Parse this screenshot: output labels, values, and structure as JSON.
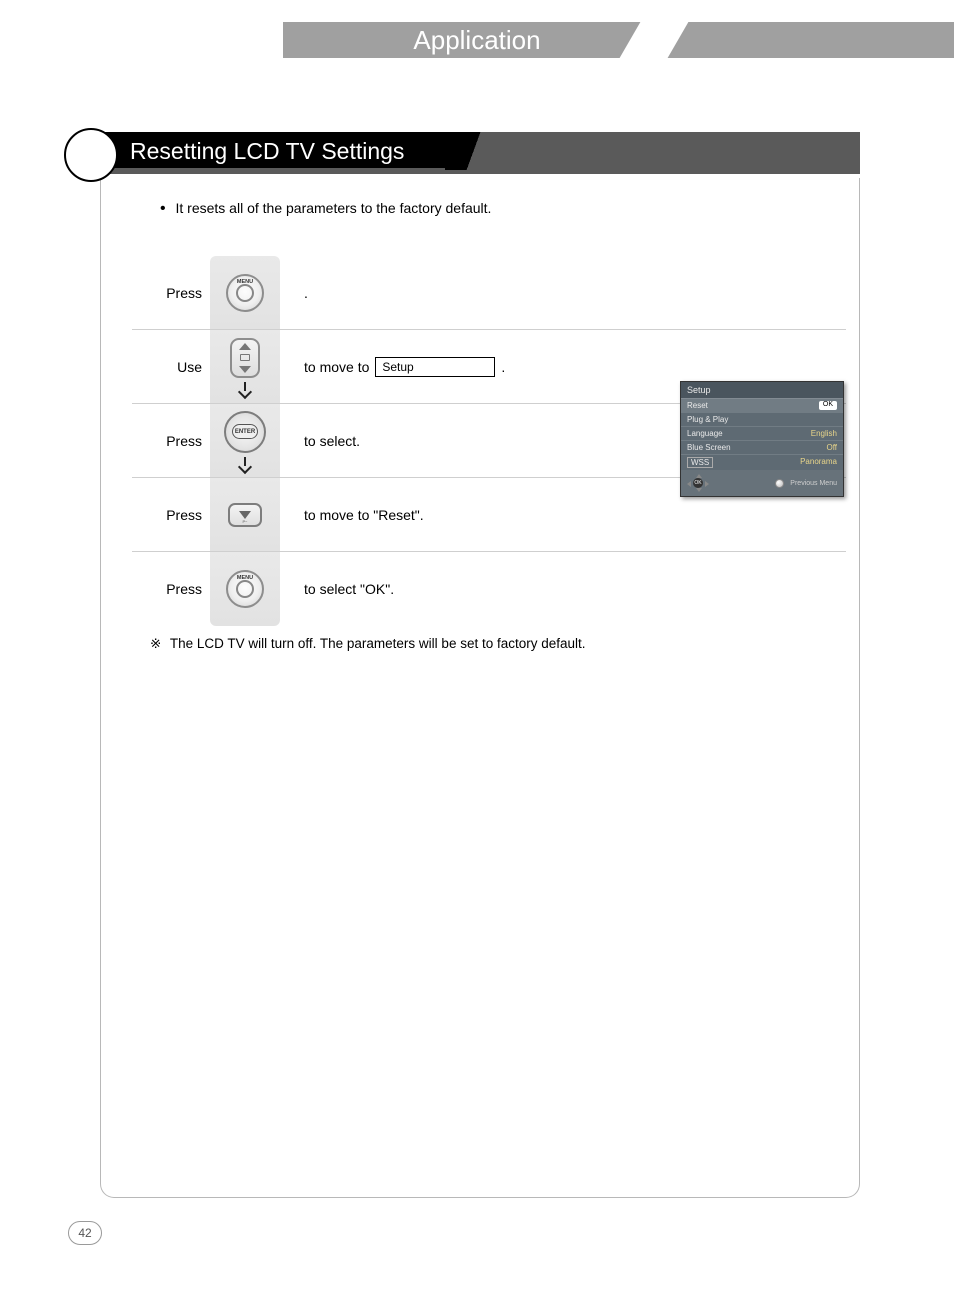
{
  "header": {
    "title": "Application"
  },
  "section": {
    "heading": "Resetting LCD TV Settings",
    "intro": "It resets all of the parameters to the factory default."
  },
  "steps": [
    {
      "label": "Press",
      "button": "menu",
      "desc_prefix": "",
      "box": "",
      "desc_suffix": " ."
    },
    {
      "label": "Use",
      "button": "updown",
      "desc_prefix": "to move to ",
      "box": "Setup",
      "desc_suffix": " .",
      "arrow_after": true
    },
    {
      "label": "Press",
      "button": "enter",
      "desc_prefix": "to select.",
      "box": "",
      "desc_suffix": "",
      "arrow_after": true
    },
    {
      "label": "Press",
      "button": "down",
      "desc_prefix": "to move to  \"Reset\".",
      "box": "",
      "desc_suffix": ""
    },
    {
      "label": "Press",
      "button": "menu",
      "desc_prefix": "to select  \"OK\".",
      "box": "",
      "desc_suffix": ""
    }
  ],
  "buttons": {
    "menu_label": "MENU",
    "enter_label": "ENTER",
    "down_sub": "P−"
  },
  "note": {
    "mark": "※",
    "text": "The LCD TV will turn off. The parameters will be set to factory default."
  },
  "osd": {
    "title": "Setup",
    "rows": [
      {
        "k": "Reset",
        "v": "OK",
        "ok": true,
        "hl": true
      },
      {
        "k": "Plug & Play",
        "v": ""
      },
      {
        "k": "Language",
        "v": "English"
      },
      {
        "k": "Blue Screen",
        "v": "Off"
      },
      {
        "k": "WSS",
        "v": "Panorama",
        "boxed": true
      }
    ],
    "nav_center": "OK",
    "footer": "Previous Menu"
  },
  "page_number": "42"
}
